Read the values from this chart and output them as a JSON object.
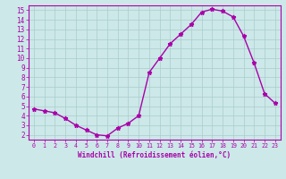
{
  "x": [
    0,
    1,
    2,
    3,
    4,
    5,
    6,
    7,
    8,
    9,
    10,
    11,
    12,
    13,
    14,
    15,
    16,
    17,
    18,
    19,
    20,
    21,
    22,
    23
  ],
  "y": [
    4.7,
    4.5,
    4.3,
    3.7,
    3.0,
    2.5,
    2.0,
    1.9,
    2.7,
    3.2,
    4.0,
    8.5,
    10.0,
    11.5,
    12.5,
    13.5,
    14.8,
    15.1,
    14.9,
    14.3,
    12.3,
    9.5,
    6.3,
    5.3
  ],
  "line_color": "#aa00aa",
  "marker": "*",
  "marker_color": "#aa00aa",
  "bg_color": "#cce8e8",
  "grid_color": "#aacccc",
  "xlabel": "Windchill (Refroidissement éolien,°C)",
  "xlabel_color": "#aa00aa",
  "tick_color": "#aa00aa",
  "xlim": [
    -0.5,
    23.5
  ],
  "ylim": [
    1.5,
    15.5
  ],
  "yticks": [
    2,
    3,
    4,
    5,
    6,
    7,
    8,
    9,
    10,
    11,
    12,
    13,
    14,
    15
  ],
  "xticks": [
    0,
    1,
    2,
    3,
    4,
    5,
    6,
    7,
    8,
    9,
    10,
    11,
    12,
    13,
    14,
    15,
    16,
    17,
    18,
    19,
    20,
    21,
    22,
    23
  ],
  "spine_color": "#aa00aa",
  "linewidth": 1.0,
  "markersize": 3.5
}
